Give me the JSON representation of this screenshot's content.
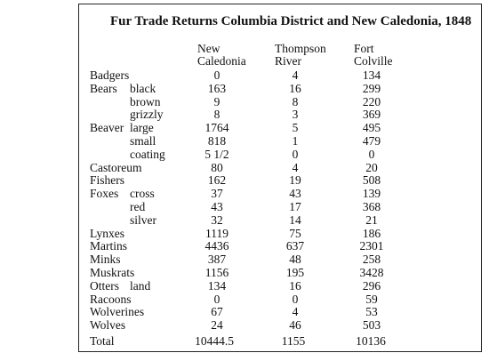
{
  "title": "Fur Trade Returns Columbia District and New Caledonia, 1848",
  "columns": [
    {
      "line1": "New",
      "line2": "Caledonia"
    },
    {
      "line1": "Thompson",
      "line2": "River"
    },
    {
      "line1": "Fort",
      "line2": "Colville"
    }
  ],
  "rows": [
    {
      "category": "Badgers",
      "sub": "",
      "nc": "0",
      "tr": "4",
      "fc": "134"
    },
    {
      "category": "Bears",
      "sub": "black",
      "nc": "163",
      "tr": "16",
      "fc": "299"
    },
    {
      "category": "",
      "sub": "brown",
      "nc": "9",
      "tr": "8",
      "fc": "220"
    },
    {
      "category": "",
      "sub": "grizzly",
      "nc": "8",
      "tr": "3",
      "fc": "369"
    },
    {
      "category": "Beaver",
      "sub": "large",
      "nc": "1764",
      "tr": "5",
      "fc": "495"
    },
    {
      "category": "",
      "sub": "small",
      "nc": "818",
      "tr": "1",
      "fc": "479"
    },
    {
      "category": "",
      "sub": "coating",
      "nc": "5 1/2",
      "tr": "0",
      "fc": "0"
    },
    {
      "category": "Castoreum",
      "sub": "",
      "nc": "80",
      "tr": "4",
      "fc": "20"
    },
    {
      "category": "Fishers",
      "sub": "",
      "nc": "162",
      "tr": "19",
      "fc": "508"
    },
    {
      "category": "Foxes",
      "sub": "cross",
      "nc": "37",
      "tr": "43",
      "fc": "139"
    },
    {
      "category": "",
      "sub": "red",
      "nc": "43",
      "tr": "17",
      "fc": "368"
    },
    {
      "category": "",
      "sub": "silver",
      "nc": "32",
      "tr": "14",
      "fc": "21"
    },
    {
      "category": "Lynxes",
      "sub": "",
      "nc": "1119",
      "tr": "75",
      "fc": "186"
    },
    {
      "category": "Martins",
      "sub": "",
      "nc": "4436",
      "tr": "637",
      "fc": "2301"
    },
    {
      "category": "Minks",
      "sub": "",
      "nc": "387",
      "tr": "48",
      "fc": "258"
    },
    {
      "category": "Muskrats",
      "sub": "",
      "nc": "1156",
      "tr": "195",
      "fc": "3428"
    },
    {
      "category": "Otters",
      "sub": "land",
      "nc": "134",
      "tr": "16",
      "fc": "296"
    },
    {
      "category": "Racoons",
      "sub": "",
      "nc": "0",
      "tr": "0",
      "fc": "59"
    },
    {
      "category": "Wolverines",
      "sub": "",
      "nc": "67",
      "tr": "4",
      "fc": "53"
    },
    {
      "category": "Wolves",
      "sub": "",
      "nc": "24",
      "tr": "46",
      "fc": "503"
    }
  ],
  "total": {
    "label": "Total",
    "nc": "10444.5",
    "tr": "1155",
    "fc": "10136"
  }
}
